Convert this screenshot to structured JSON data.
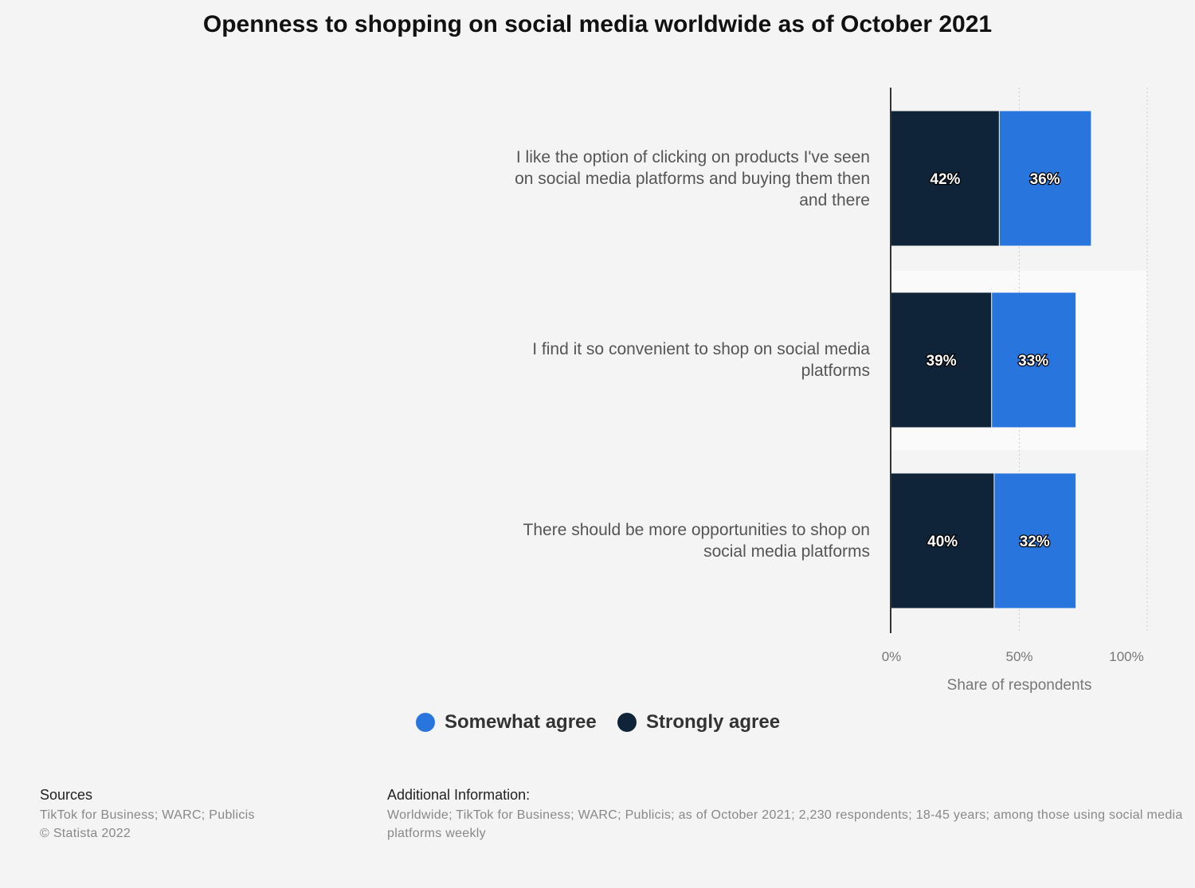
{
  "chart_data": {
    "type": "bar",
    "orientation": "horizontal",
    "stacked": true,
    "title": "Openness to shopping on social media worldwide as of October 2021",
    "xlabel": "Share of respondents",
    "xlim": [
      0,
      100
    ],
    "ticks": [
      "0%",
      "50%",
      "100%"
    ],
    "grid": true,
    "legend_position": "bottom",
    "categories": [
      "I like the option of clicking on products I've seen on social media platforms and buying them then and there",
      "I find it so convenient to shop on social media platforms",
      "There should be more opportunities to shop on social media platforms"
    ],
    "category_lines": [
      [
        "I like the option of clicking on products I've seen",
        "on social media platforms and buying them then",
        "and there"
      ],
      [
        "I find it so convenient to shop on social media",
        "platforms"
      ],
      [
        "There should be more opportunities to shop on",
        "social media platforms"
      ]
    ],
    "series": [
      {
        "name": "Strongly agree",
        "color": "#0f2339",
        "values": [
          42,
          39,
          40
        ],
        "labels": [
          "42%",
          "39%",
          "40%"
        ]
      },
      {
        "name": "Somewhat agree",
        "color": "#2876dd",
        "values": [
          36,
          33,
          32
        ],
        "labels": [
          "36%",
          "33%",
          "32%"
        ]
      }
    ],
    "legend": [
      {
        "name": "Somewhat agree",
        "color": "#2876dd"
      },
      {
        "name": "Strongly agree",
        "color": "#0f2339"
      }
    ]
  },
  "footer": {
    "sources_heading": "Sources",
    "sources": "TikTok for Business; WARC; Publicis",
    "copyright": "© Statista 2022",
    "additional_heading": "Additional Information:",
    "additional_line1": "Worldwide; TikTok for Business; WARC; Publicis; as of October 2021; 2,230 respondents; 18-45 years; among those using social media",
    "additional_line2": "platforms weekly"
  }
}
